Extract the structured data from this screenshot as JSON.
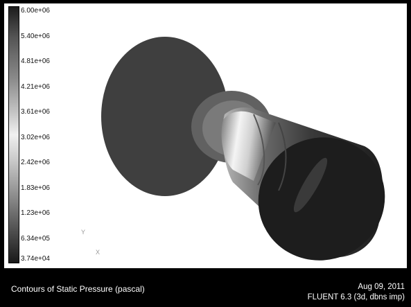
{
  "colorbar": {
    "labels": [
      "6.00e+06",
      "5.40e+06",
      "4.81e+06",
      "4.21e+06",
      "3.61e+06",
      "3.02e+06",
      "2.42e+06",
      "1.83e+06",
      "1.23e+06",
      "6.34e+05",
      "3.74e+04"
    ]
  },
  "axes": {
    "y": "Y",
    "x": "X"
  },
  "footer": {
    "caption": "Contours of Static Pressure (pascal)",
    "date": "Aug 09, 2011",
    "version": "FLUENT 6.3 (3d, dbns imp)"
  }
}
